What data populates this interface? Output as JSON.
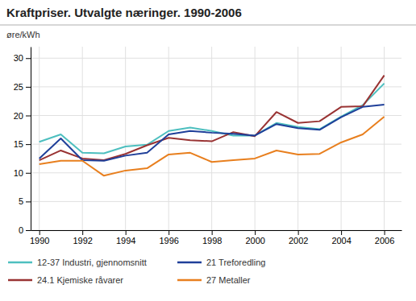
{
  "chart_data": {
    "type": "line",
    "title": "Kraftpriser. Utvalgte næringer. 1990-2006",
    "ylabel": "øre/kWh",
    "x": [
      1990,
      1991,
      1992,
      1993,
      1994,
      1995,
      1996,
      1997,
      1998,
      1999,
      2000,
      2001,
      2002,
      2003,
      2004,
      2005,
      2006
    ],
    "series": [
      {
        "name": "12-37 Industri, gjennomsnitt",
        "color": "#4dbfbf",
        "values": [
          15.4,
          16.7,
          13.5,
          13.4,
          14.6,
          14.9,
          17.3,
          17.9,
          17.3,
          16.5,
          16.5,
          18.7,
          18.0,
          17.6,
          19.8,
          21.8,
          25.6
        ]
      },
      {
        "name": "24.1 Kjemiske råvarer",
        "color": "#993333",
        "values": [
          12.2,
          13.9,
          12.5,
          12.2,
          13.3,
          14.8,
          16.1,
          15.7,
          15.5,
          17.1,
          16.4,
          20.6,
          18.7,
          19.0,
          21.5,
          21.6,
          27.0
        ]
      },
      {
        "name": "21 Treforedling",
        "color": "#1f3f99",
        "values": [
          12.5,
          16.0,
          12.2,
          12.1,
          13.0,
          13.5,
          16.7,
          17.3,
          17.0,
          16.8,
          16.5,
          18.5,
          17.8,
          17.5,
          19.7,
          21.5,
          21.9
        ]
      },
      {
        "name": "27 Metaller",
        "color": "#e87f1e",
        "values": [
          11.5,
          12.1,
          12.1,
          9.5,
          10.4,
          10.8,
          13.2,
          13.5,
          11.9,
          12.2,
          12.5,
          13.9,
          13.2,
          13.3,
          15.3,
          16.7,
          19.8
        ]
      }
    ],
    "xlim": [
      1989.6,
      2006.8
    ],
    "xticks": [
      1990,
      1992,
      1994,
      1996,
      1998,
      2000,
      2002,
      2004,
      2006
    ],
    "ylim": [
      0,
      32
    ],
    "yticks": [
      0,
      5,
      10,
      15,
      20,
      25,
      30
    ],
    "grid": true,
    "legend": "bottom"
  }
}
